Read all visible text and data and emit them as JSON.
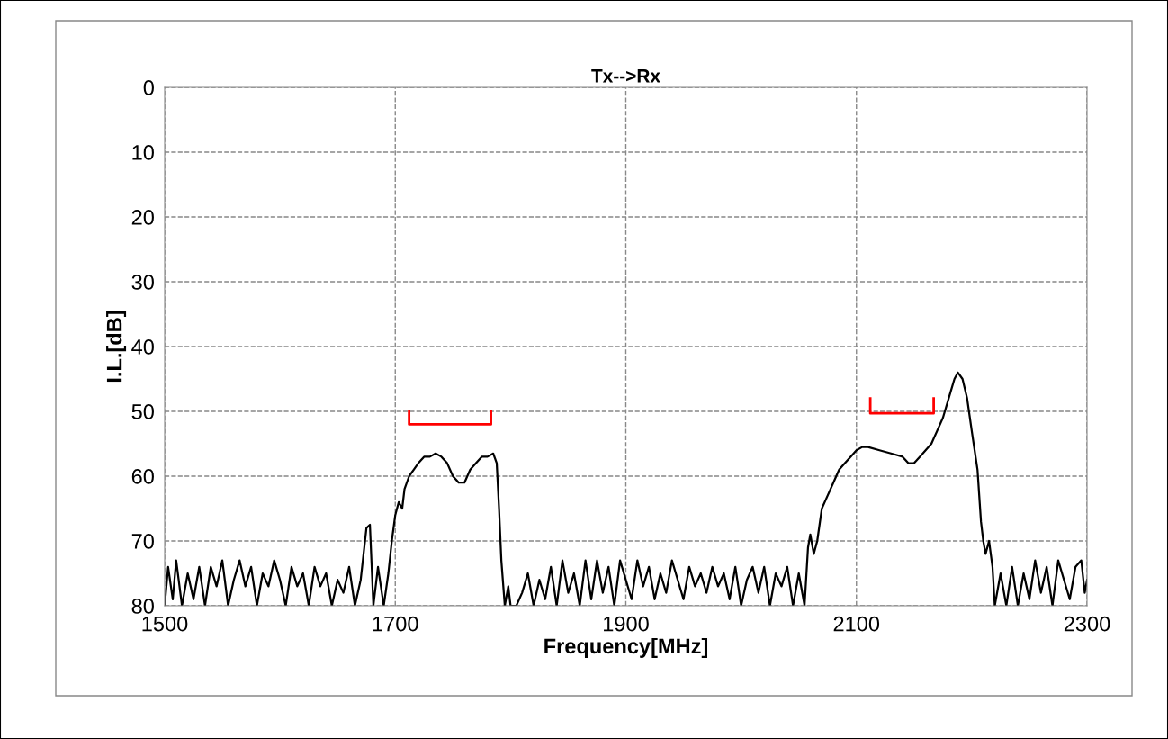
{
  "chart_data": {
    "type": "line",
    "title": "Tx-->Rx",
    "xlabel": "Frequency[MHz]",
    "ylabel": "I.L.[dB]",
    "xlim": [
      1500,
      2300
    ],
    "xticks": [
      1500,
      1700,
      1900,
      2100,
      2300
    ],
    "ylim": [
      80,
      0
    ],
    "yticks": [
      0,
      10,
      20,
      30,
      40,
      50,
      60,
      70,
      80
    ],
    "grid": true,
    "legend": false,
    "line_style": "solid",
    "marker": "none",
    "series": [
      {
        "color": "#000000",
        "x": [
          1500,
          1503,
          1507,
          1510,
          1515,
          1520,
          1525,
          1530,
          1535,
          1540,
          1545,
          1550,
          1555,
          1560,
          1565,
          1570,
          1575,
          1580,
          1585,
          1590,
          1595,
          1600,
          1605,
          1610,
          1615,
          1620,
          1625,
          1630,
          1635,
          1640,
          1645,
          1650,
          1655,
          1660,
          1665,
          1670,
          1675,
          1678,
          1681,
          1685,
          1690,
          1694,
          1697,
          1700,
          1703,
          1706,
          1708,
          1712,
          1716,
          1720,
          1725,
          1730,
          1735,
          1740,
          1745,
          1750,
          1755,
          1760,
          1765,
          1770,
          1775,
          1780,
          1785,
          1788,
          1790,
          1792,
          1795,
          1798,
          1800,
          1805,
          1810,
          1815,
          1820,
          1825,
          1830,
          1835,
          1840,
          1845,
          1850,
          1855,
          1860,
          1865,
          1870,
          1875,
          1880,
          1885,
          1890,
          1895,
          1900,
          1905,
          1910,
          1915,
          1920,
          1925,
          1930,
          1935,
          1940,
          1945,
          1950,
          1955,
          1960,
          1965,
          1970,
          1975,
          1980,
          1985,
          1990,
          1995,
          2000,
          2005,
          2010,
          2015,
          2020,
          2025,
          2030,
          2035,
          2040,
          2045,
          2050,
          2055,
          2058,
          2060,
          2063,
          2066,
          2070,
          2075,
          2080,
          2085,
          2090,
          2095,
          2100,
          2105,
          2110,
          2120,
          2130,
          2140,
          2145,
          2150,
          2155,
          2160,
          2165,
          2170,
          2175,
          2180,
          2185,
          2188,
          2192,
          2196,
          2200,
          2205,
          2208,
          2210,
          2212,
          2215,
          2218,
          2220,
          2225,
          2230,
          2235,
          2240,
          2245,
          2250,
          2255,
          2260,
          2265,
          2270,
          2275,
          2280,
          2285,
          2290,
          2295,
          2298,
          2300
        ],
        "values": [
          80,
          74,
          79,
          73,
          80,
          75,
          79,
          74,
          80,
          74,
          77,
          73,
          80,
          76,
          73,
          77,
          74,
          80,
          75,
          77,
          73,
          76,
          80,
          74,
          77,
          75,
          80,
          74,
          77,
          75,
          80,
          76,
          78,
          74,
          80,
          76,
          68,
          67.5,
          80,
          74,
          80,
          75,
          70,
          66,
          64,
          65,
          62,
          60,
          59,
          58,
          57,
          57,
          56.5,
          57,
          58,
          60,
          61,
          61,
          59,
          58,
          57,
          57,
          56.5,
          58,
          65,
          73,
          80,
          77,
          80,
          80,
          78,
          75,
          80,
          76,
          79,
          74,
          80,
          73,
          78,
          75,
          80,
          73,
          79,
          73,
          78,
          74,
          80,
          73,
          76,
          79,
          73,
          77,
          74,
          79,
          75,
          78,
          73,
          76,
          79,
          74,
          77,
          75,
          78,
          74,
          77,
          75,
          79,
          74,
          80,
          76,
          74,
          78,
          74,
          80,
          75,
          77,
          74,
          80,
          75,
          80,
          71,
          69,
          72,
          70,
          65,
          63,
          61,
          59,
          58,
          57,
          56,
          55.5,
          55.5,
          56,
          56.5,
          57,
          58,
          58,
          57,
          56,
          55,
          53,
          51,
          48,
          45,
          44,
          45,
          48,
          53,
          59,
          67,
          70,
          72,
          70,
          74,
          80,
          75,
          80,
          74,
          80,
          75,
          79,
          73,
          78,
          74,
          80,
          73,
          76,
          79,
          74,
          73,
          78,
          76
        ]
      },
      {
        "color": "#ff0000",
        "x": [
          1712,
          1712,
          1783,
          1783
        ],
        "values": [
          50,
          52,
          52,
          50
        ]
      },
      {
        "color": "#ff0000",
        "x": [
          2112,
          2112,
          2167,
          2167
        ],
        "values": [
          48,
          50.3,
          50.3,
          48
        ]
      }
    ]
  }
}
